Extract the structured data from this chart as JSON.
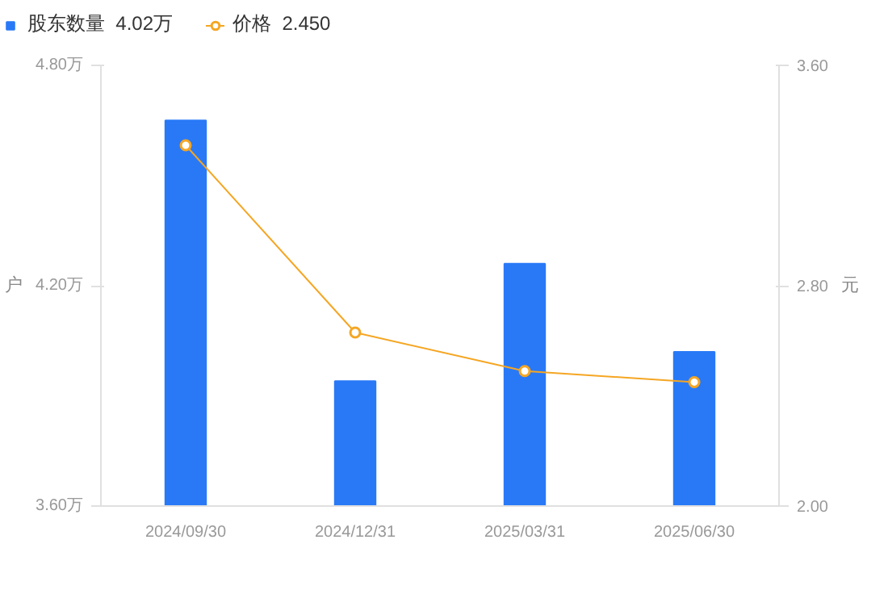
{
  "chart_data": {
    "type": "bar",
    "categories": [
      "2024/09/30",
      "2024/12/31",
      "2025/03/31",
      "2025/06/30"
    ],
    "ylabel": "户",
    "y2label": "元",
    "series": [
      {
        "name": "股东数量  4.02万",
        "color": "#2979f7",
        "values": [
          4.65,
          3.94,
          4.26,
          4.02
        ]
      },
      {
        "name": "价格  2.450",
        "type": "line",
        "axis": "y2",
        "color": "#f5a623",
        "values": [
          3.31,
          2.63,
          2.49,
          2.45
        ]
      }
    ],
    "ylim": [
      3.6,
      4.8
    ],
    "yticks": [
      {
        "value": 3.6,
        "label": "3.60万"
      },
      {
        "value": 4.2,
        "label": "4.20万"
      },
      {
        "value": 4.8,
        "label": "4.80万"
      }
    ],
    "y2lim": [
      2.0,
      3.6
    ],
    "y2ticks": [
      {
        "value": 2.0,
        "label": "2.00"
      },
      {
        "value": 2.8,
        "label": "2.80"
      },
      {
        "value": 3.6,
        "label": "3.60"
      }
    ],
    "marker": "circle",
    "legend": "top left",
    "grid": false
  }
}
